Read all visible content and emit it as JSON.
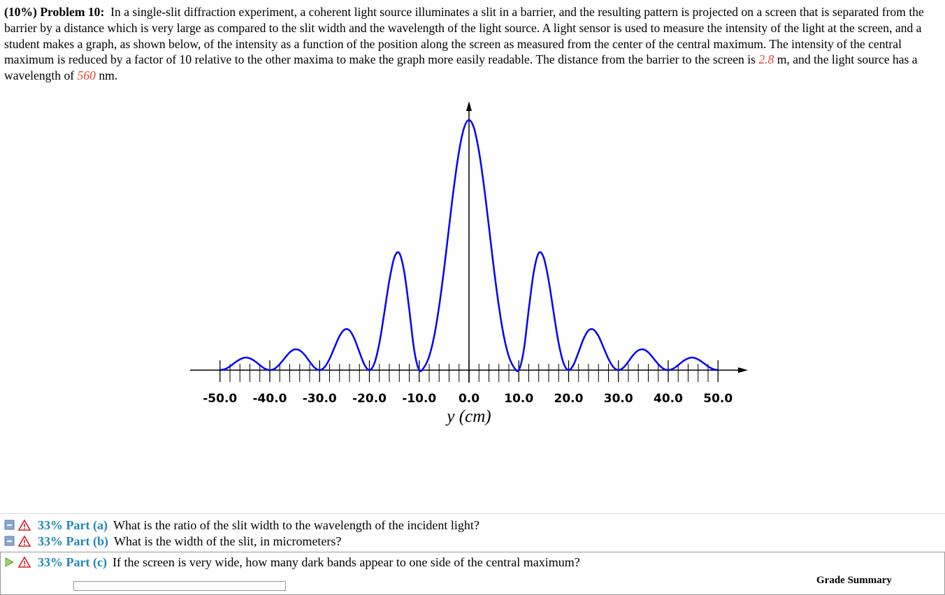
{
  "problem": {
    "weight": "(10%)",
    "title": "Problem 10:",
    "text_1": "In a single-slit diffraction experiment, a coherent light source illuminates a slit in a barrier, and the resulting pattern is projected on a screen that is separated from the barrier by a distance which is very large as compared to the slit width and the wavelength of the light source. A light sensor is used to measure the intensity of the light at the screen, and a student makes a graph, as shown below, of the intensity as a function of the position along the screen as measured from the center of the central maximum. The intensity of the central maximum is reduced by a factor of 10 relative to the other maxima to make the graph more easily readable. The distance from the barrier to the screen is",
    "distance": "2.8",
    "text_2": "m, and the light source has a wavelength of",
    "wavelength": "560",
    "text_3": "nm."
  },
  "chart_data": {
    "type": "line",
    "x_label": "y (cm)",
    "color": "#0000ff",
    "x": [
      -50,
      -49,
      -48,
      -47,
      -46,
      -45,
      -44,
      -43,
      -42,
      -41,
      -40,
      -39,
      -38,
      -37,
      -36,
      -35,
      -34,
      -33,
      -32,
      -31,
      -30,
      -29,
      -28,
      -27,
      -26,
      -25,
      -24,
      -23,
      -22,
      -21,
      -20,
      -19,
      -18,
      -17,
      -16,
      -15,
      -14,
      -13,
      -12,
      -11,
      -10,
      -9,
      -8,
      -7,
      -6,
      -5,
      -4,
      -3,
      -2,
      -1,
      0,
      1,
      2,
      3,
      4,
      5,
      6,
      7,
      8,
      9,
      10,
      11,
      12,
      13,
      14,
      15,
      16,
      17,
      18,
      19,
      20,
      21,
      22,
      23,
      24,
      25,
      26,
      27,
      28,
      29,
      30,
      31,
      32,
      33,
      34,
      35,
      36,
      37,
      38,
      39,
      40,
      41,
      42,
      43,
      44,
      45,
      46,
      47,
      48,
      49,
      50
    ],
    "values": [
      0,
      0.004,
      0.015,
      0.03,
      0.043,
      0.05,
      0.047,
      0.036,
      0.02,
      0.006,
      0,
      0.006,
      0.024,
      0.048,
      0.071,
      0.083,
      0.079,
      0.061,
      0.034,
      0.01,
      0,
      0.012,
      0.045,
      0.091,
      0.136,
      0.162,
      0.159,
      0.125,
      0.072,
      0.022,
      0,
      0.027,
      0.108,
      0.23,
      0.358,
      0.45,
      0.468,
      0.392,
      0.243,
      0.08,
      0,
      0.012,
      0.055,
      0.135,
      0.255,
      0.405,
      0.573,
      0.737,
      0.875,
      0.968,
      1,
      0.968,
      0.875,
      0.737,
      0.573,
      0.405,
      0.255,
      0.135,
      0.055,
      0.012,
      0,
      0.08,
      0.243,
      0.392,
      0.468,
      0.45,
      0.358,
      0.23,
      0.108,
      0.027,
      0,
      0.022,
      0.072,
      0.125,
      0.159,
      0.162,
      0.136,
      0.091,
      0.045,
      0.012,
      0,
      0.01,
      0.034,
      0.061,
      0.079,
      0.083,
      0.071,
      0.048,
      0.024,
      0.006,
      0,
      0.006,
      0.02,
      0.036,
      0.047,
      0.05,
      0.043,
      0.03,
      0.015,
      0.004,
      0
    ],
    "xlim": [
      -56,
      56
    ],
    "ylim": [
      0,
      1.075
    ],
    "xticks": [
      {
        "value": -50,
        "label": "-50.0"
      },
      {
        "value": -40,
        "label": "-40.0"
      },
      {
        "value": -30,
        "label": "-30.0"
      },
      {
        "value": -20,
        "label": "-20.0"
      },
      {
        "value": -10,
        "label": "-10.0"
      },
      {
        "value": 0,
        "label": "0.0"
      },
      {
        "value": 10,
        "label": "10.0"
      },
      {
        "value": 20,
        "label": "20.0"
      },
      {
        "value": 30,
        "label": "30.0"
      },
      {
        "value": 40,
        "label": "40.0"
      },
      {
        "value": 50,
        "label": "50.0"
      }
    ],
    "xminorticks": [
      -48,
      -46,
      -44,
      -42,
      -38,
      -36,
      -34,
      -32,
      -28,
      -26,
      -24,
      -22,
      -18,
      -16,
      -14,
      -12,
      -8,
      -6,
      -4,
      -2,
      2,
      4,
      6,
      8,
      12,
      14,
      16,
      18,
      22,
      24,
      26,
      28,
      32,
      34,
      36,
      38,
      42,
      44,
      46,
      48
    ]
  },
  "parts": [
    {
      "percent": "33%",
      "label": "Part (a)",
      "question": "What is the ratio of the slit width to the wavelength of the incident light?"
    },
    {
      "percent": "33%",
      "label": "Part (b)",
      "question": "What is the width of the slit, in micrometers?"
    },
    {
      "percent": "33%",
      "label": "Part (c)",
      "question": "If the screen is very wide, how many dark bands appear to one side of the central maximum?"
    }
  ],
  "grade_summary": "Grade Summary"
}
